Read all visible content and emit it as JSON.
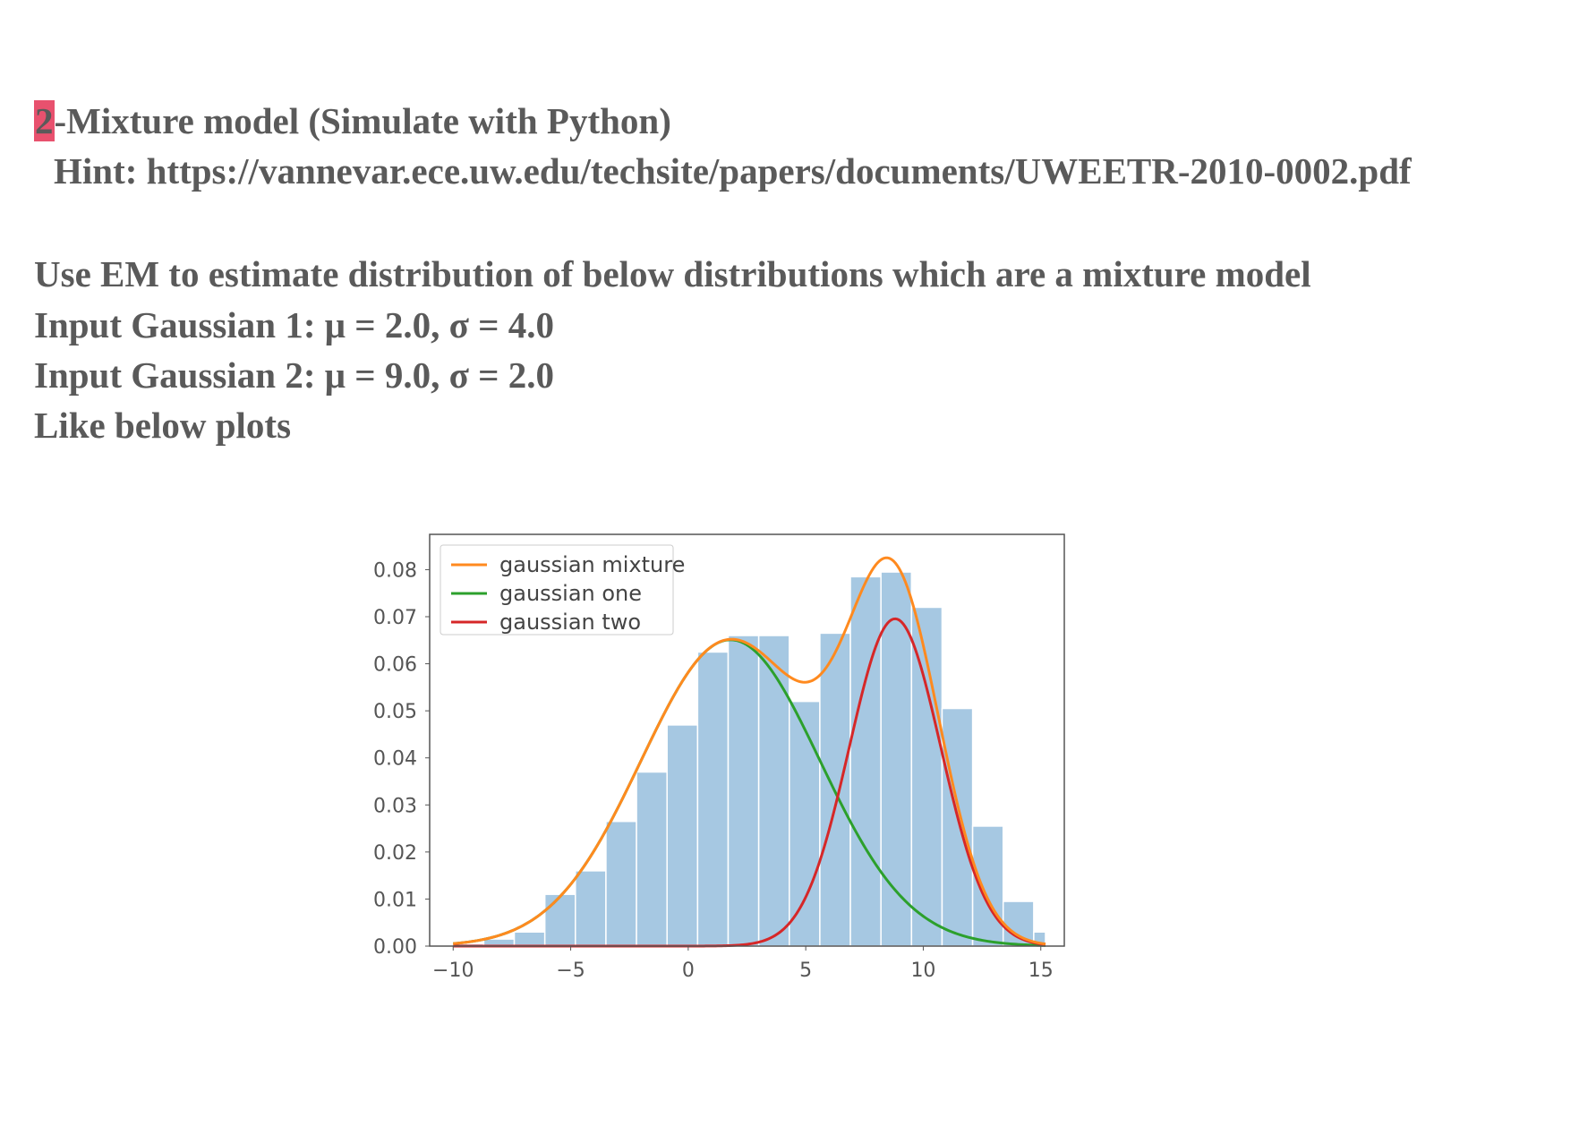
{
  "document": {
    "heading_number": "2",
    "heading_rest": "-Mixture model (Simulate with Python)",
    "hint": "Hint: https://vannevar.ece.uw.edu/techsite/papers/documents/UWEETR-2010-0002.pdf",
    "instruction": "Use EM to estimate distribution of below distributions which are a mixture model",
    "gaussian1": "Input Gaussian 1: μ = 2.0, σ = 4.0",
    "gaussian2": "Input Gaussian 2: μ = 9.0, σ = 2.0",
    "closing": "Like below plots",
    "highlight_color": "#e8516e"
  },
  "chart_data": {
    "type": "bar",
    "title": "",
    "xlabel": "",
    "ylabel": "",
    "xlim": [
      -11,
      16
    ],
    "ylim": [
      0,
      0.0875
    ],
    "xticks": [
      -10,
      -5,
      0,
      5,
      10,
      15
    ],
    "xtick_labels": [
      "−10",
      "−5",
      "0",
      "5",
      "10",
      "15"
    ],
    "yticks": [
      0.0,
      0.01,
      0.02,
      0.03,
      0.04,
      0.05,
      0.06,
      0.07,
      0.08
    ],
    "ytick_labels": [
      "0.00",
      "0.01",
      "0.02",
      "0.03",
      "0.04",
      "0.05",
      "0.06",
      "0.07",
      "0.08"
    ],
    "grid": false,
    "legend_position": "top-left",
    "histogram": {
      "color": "#a6c8e2",
      "bin_edges": [
        -10.0,
        -8.7,
        -7.4,
        -6.1,
        -4.8,
        -3.5,
        -2.2,
        -0.9,
        0.4,
        1.7,
        3.0,
        4.3,
        5.6,
        6.9,
        8.2,
        9.5,
        10.8,
        12.1,
        13.4,
        14.7,
        15.2
      ],
      "values": [
        0.0005,
        0.0015,
        0.003,
        0.011,
        0.016,
        0.0265,
        0.037,
        0.047,
        0.0625,
        0.066,
        0.066,
        0.052,
        0.0665,
        0.0785,
        0.0795,
        0.072,
        0.0505,
        0.0255,
        0.0095,
        0.003
      ]
    },
    "series": [
      {
        "name": "gaussian mixture",
        "color": "#ff8a1f",
        "kind": "mixture",
        "components": [
          {
            "mean": 1.8,
            "sd": 3.8,
            "weight": 0.62
          },
          {
            "mean": 8.8,
            "sd": 1.95,
            "weight": 0.34
          }
        ]
      },
      {
        "name": "gaussian one",
        "color": "#2ca02c",
        "kind": "gaussian",
        "mean": 1.8,
        "sd": 3.8,
        "weight": 0.62
      },
      {
        "name": "gaussian two",
        "color": "#d62728",
        "kind": "gaussian",
        "mean": 8.8,
        "sd": 1.95,
        "weight": 0.34
      }
    ],
    "curve_range": [
      -10,
      15.2
    ]
  }
}
